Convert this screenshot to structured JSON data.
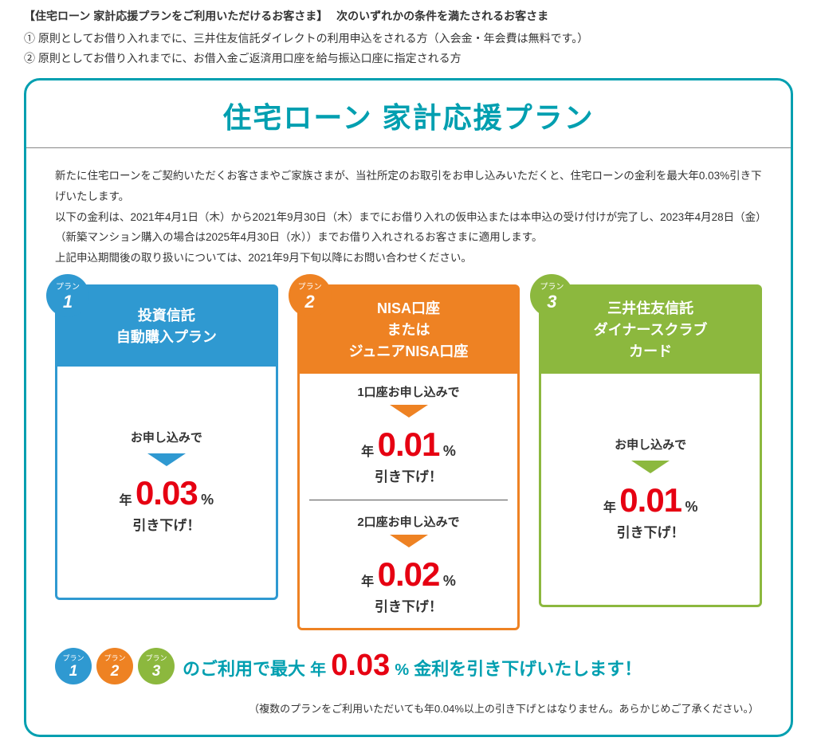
{
  "intro": {
    "heading": "【住宅ローン 家計応援プランをご利用いただけるお客さま】　 次のいずれかの条件を満たされるお客さま",
    "line1": "① 原則としてお借り入れまでに、三井住友信託ダイレクトの利用申込をされる方（入会金・年会費は無料です。）",
    "line2": "② 原則としてお借り入れまでに、お借入金ご返済用口座を給与振込口座に指定される方"
  },
  "title": "住宅ローン 家計応援プラン",
  "description": "新たに住宅ローンをご契約いただくお客さまやご家族さまが、当社所定のお取引をお申し込みいただくと、住宅ローンの金利を最大年0.03%引き下げいたします。\n以下の金利は、2021年4月1日（木）から2021年9月30日（木）までにお借り入れの仮申込または本申込の受け付けが完了し、2023年4月28日（金）（新築マンション購入の場合は2025年4月30日（水））までお借り入れされるお客さまに適用します。\n上記申込期間後の取り扱いについては、2021年9月下旬以降にお問い合わせください。",
  "plan_label": "プラン",
  "plans": {
    "p1": {
      "num": "1",
      "head": "投資信託\n自動購入プラン",
      "apply": "お申し込みで",
      "prefix": "年",
      "rate": "0.03",
      "pct": "%",
      "suffix": "引き下げ！"
    },
    "p2": {
      "num": "2",
      "head": "NISA口座\nまたは\nジュニアNISA口座",
      "seg1_apply": "1口座お申し込みで",
      "seg1_prefix": "年",
      "seg1_rate": "0.01",
      "seg1_pct": "%",
      "seg1_suffix": "引き下げ！",
      "seg2_apply": "2口座お申し込みで",
      "seg2_prefix": "年",
      "seg2_rate": "0.02",
      "seg2_pct": "%",
      "seg2_suffix": "引き下げ！"
    },
    "p3": {
      "num": "3",
      "head": "三井住友信託\nダイナースクラブ\nカード",
      "apply": "お申し込みで",
      "prefix": "年",
      "rate": "0.01",
      "pct": "%",
      "suffix": "引き下げ！"
    }
  },
  "summary": {
    "b1": "1",
    "b2": "2",
    "b3": "3",
    "pre": "のご利用で最大",
    "yr": "年",
    "rate": "0.03",
    "pct": "%",
    "post": "金利を引き下げいたします！"
  },
  "note": "（複数のプランをご利用いただいても年0.04%以上の引き下げとはなりません。あらかじめご了承ください。）",
  "colors": {
    "teal": "#009fb0",
    "blue": "#2f99d1",
    "orange": "#ee8223",
    "green": "#8cb83e",
    "red": "#e60012"
  }
}
